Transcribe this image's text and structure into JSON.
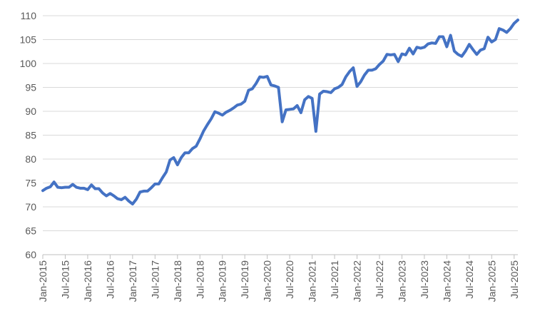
{
  "chart_data": {
    "type": "line",
    "title": "",
    "xlabel": "",
    "ylabel": "",
    "ylim": [
      60,
      110
    ],
    "yticks": [
      60,
      65,
      70,
      75,
      80,
      85,
      90,
      95,
      100,
      105,
      110
    ],
    "x_tick_labels": [
      "Jan-2015",
      "Jul-2015",
      "Jan-2016",
      "Jul-2016",
      "Jan-2017",
      "Jul-2017",
      "Jan-2018",
      "Jul-2018",
      "Jan-2019",
      "Jul-2019",
      "Jan-2020",
      "Jul-2020",
      "Jan-2021",
      "Jul-2021",
      "Jan-2022",
      "Jul-2022",
      "Jan-2023",
      "Jul-2023",
      "Jan-2024",
      "Jul-2024",
      "Jan-2025",
      "Jul-2025"
    ],
    "x_start": "2015-01",
    "grid": true,
    "legend": "none",
    "series": [
      {
        "color": "#4472C4",
        "values": [
          73.4,
          73.9,
          74.2,
          75.2,
          74.1,
          74.0,
          74.1,
          74.1,
          74.7,
          74.1,
          73.9,
          73.9,
          73.6,
          74.6,
          73.8,
          73.8,
          72.9,
          72.3,
          72.8,
          72.3,
          71.7,
          71.5,
          72.0,
          71.2,
          70.6,
          71.6,
          73.1,
          73.3,
          73.3,
          74.0,
          74.8,
          74.8,
          76.1,
          77.3,
          79.8,
          80.3,
          78.8,
          80.3,
          81.3,
          81.3,
          82.2,
          82.7,
          84.2,
          85.9,
          87.2,
          88.4,
          89.9,
          89.6,
          89.2,
          89.8,
          90.2,
          90.7,
          91.3,
          91.5,
          92.1,
          94.4,
          94.7,
          95.8,
          97.2,
          97.1,
          97.3,
          95.5,
          95.3,
          95.0,
          87.8,
          90.3,
          90.4,
          90.5,
          91.2,
          89.7,
          92.4,
          93.1,
          92.7,
          85.8,
          93.6,
          94.2,
          94.1,
          93.9,
          94.7,
          95.0,
          95.6,
          97.2,
          98.3,
          99.1,
          95.2,
          96.2,
          97.6,
          98.6,
          98.6,
          98.9,
          99.8,
          100.5,
          101.9,
          101.8,
          101.9,
          100.4,
          102.0,
          101.8,
          103.2,
          102.0,
          103.4,
          103.2,
          103.4,
          104.1,
          104.3,
          104.2,
          105.6,
          105.6,
          103.5,
          105.9,
          102.6,
          101.9,
          101.5,
          102.6,
          104.0,
          102.9,
          101.9,
          102.8,
          103.1,
          105.5,
          104.5,
          105.0,
          107.3,
          107.0,
          106.5,
          107.3,
          108.4,
          109.1
        ]
      }
    ]
  }
}
